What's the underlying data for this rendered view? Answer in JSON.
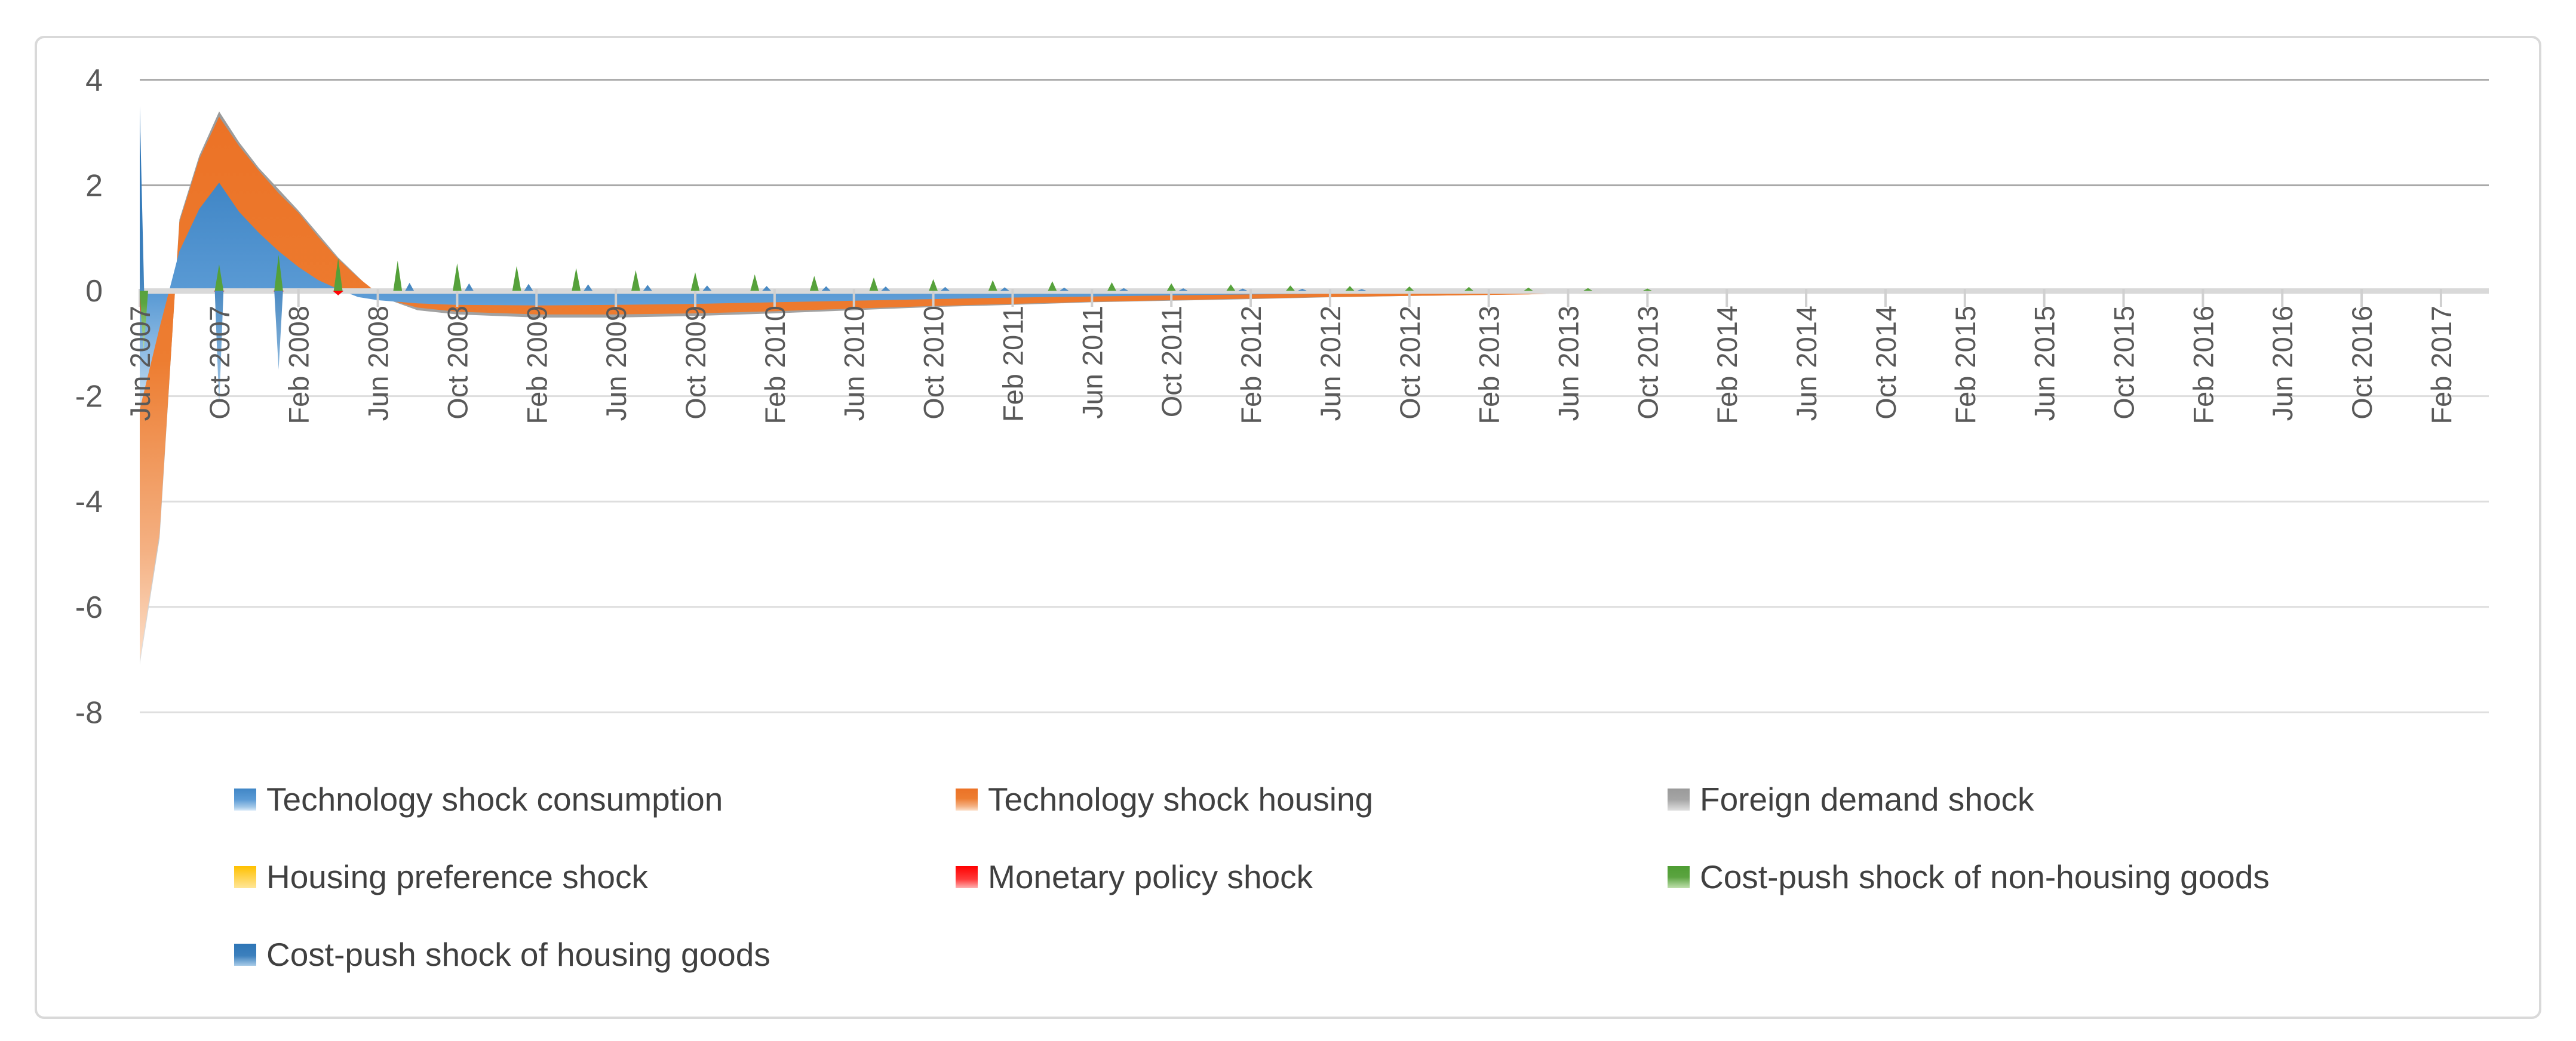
{
  "chart_data": {
    "type": "area",
    "title": "",
    "xlabel": "",
    "ylabel": "",
    "ylim": [
      -8,
      4
    ],
    "yticks": [
      4,
      2,
      0,
      -2,
      -4,
      -6,
      -8
    ],
    "grid": "horizontal",
    "legend_position": "bottom",
    "x_label_rotation": -90,
    "months_per_category": 4,
    "categories": [
      "Jun 2007",
      "Oct 2007",
      "Feb 2008",
      "Jun 2008",
      "Oct 2008",
      "Feb 2009",
      "Jun 2009",
      "Oct 2009",
      "Feb 2010",
      "Jun 2010",
      "Oct 2010",
      "Feb 2011",
      "Jun 2011",
      "Oct 2011",
      "Feb 2012",
      "Jun 2012",
      "Oct 2012",
      "Feb 2013",
      "Jun 2013",
      "Oct 2013",
      "Feb 2014",
      "Jun 2014",
      "Oct 2014",
      "Feb 2015",
      "Jun 2015",
      "Oct 2015",
      "Feb 2016",
      "Jun 2016",
      "Oct 2016",
      "Feb 2017"
    ],
    "x_unit_note": "series x values are months since Jun 2007; values estimated from pixel positions",
    "series": [
      {
        "name": "Technology shock consumption",
        "color": "#5B9BD5",
        "z": 2,
        "gradient": [
          [
            "0%",
            "#4086c6"
          ],
          [
            "50%",
            "#5B9BD5"
          ],
          [
            "85%",
            "#a6cae9"
          ],
          [
            "100%",
            "#d9eafa"
          ]
        ],
        "keyframes": [
          [
            0,
            -2.25
          ],
          [
            1,
            -0.7
          ],
          [
            2,
            0.75
          ],
          [
            3,
            1.55
          ],
          [
            4,
            2.05
          ],
          [
            5,
            1.5
          ],
          [
            6,
            1.1
          ],
          [
            7,
            0.75
          ],
          [
            8,
            0.45
          ],
          [
            9,
            0.2
          ],
          [
            10,
            0.03
          ],
          [
            11,
            -0.12
          ],
          [
            12,
            -0.18
          ],
          [
            14,
            -0.24
          ],
          [
            16,
            -0.27
          ],
          [
            20,
            -0.28
          ],
          [
            24,
            -0.27
          ],
          [
            28,
            -0.25
          ],
          [
            32,
            -0.22
          ],
          [
            36,
            -0.19
          ],
          [
            40,
            -0.16
          ],
          [
            44,
            -0.13
          ],
          [
            48,
            -0.11
          ],
          [
            52,
            -0.09
          ],
          [
            56,
            -0.07
          ],
          [
            60,
            -0.055
          ],
          [
            64,
            -0.04
          ],
          [
            68,
            -0.03
          ],
          [
            72,
            -0.02
          ],
          [
            76,
            -0.01
          ],
          [
            80,
            0
          ],
          [
            118,
            0
          ]
        ]
      },
      {
        "name": "Technology shock  housing",
        "color": "#ED7D31",
        "z": 1,
        "gradient": [
          [
            "0%",
            "#ec7226"
          ],
          [
            "45%",
            "#ED7D31"
          ],
          [
            "80%",
            "#f4b183"
          ],
          [
            "100%",
            "#fcdfc9"
          ]
        ],
        "keyframes": [
          [
            0,
            -7.0
          ],
          [
            1,
            -4.6
          ],
          [
            2,
            1.3
          ],
          [
            3,
            2.5
          ],
          [
            4,
            3.3
          ],
          [
            5,
            2.75
          ],
          [
            6,
            2.28
          ],
          [
            7,
            1.85
          ],
          [
            8,
            1.48
          ],
          [
            9,
            1.02
          ],
          [
            10,
            0.6
          ],
          [
            11,
            0.25
          ],
          [
            12,
            -0.05
          ],
          [
            13,
            -0.22
          ],
          [
            14,
            -0.32
          ],
          [
            16,
            -0.4
          ],
          [
            20,
            -0.45
          ],
          [
            24,
            -0.45
          ],
          [
            28,
            -0.43
          ],
          [
            32,
            -0.39
          ],
          [
            36,
            -0.34
          ],
          [
            40,
            -0.29
          ],
          [
            44,
            -0.25
          ],
          [
            48,
            -0.21
          ],
          [
            52,
            -0.18
          ],
          [
            56,
            -0.15
          ],
          [
            60,
            -0.12
          ],
          [
            64,
            -0.1
          ],
          [
            68,
            -0.08
          ],
          [
            70,
            -0.07
          ],
          [
            72,
            -0.04
          ],
          [
            74,
            -0.02
          ],
          [
            75,
            0
          ],
          [
            118,
            0
          ]
        ]
      },
      {
        "name": "Foreign demand shock",
        "color": "#A5A5A5",
        "z": 0,
        "gradient": [
          [
            "0%",
            "#9a9a9a"
          ],
          [
            "50%",
            "#A5A5A5"
          ],
          [
            "100%",
            "#e0e0e0"
          ]
        ],
        "keyframes": [
          [
            0,
            -7.1
          ],
          [
            1,
            -4.7
          ],
          [
            2,
            1.35
          ],
          [
            3,
            2.56
          ],
          [
            4,
            3.4
          ],
          [
            5,
            2.82
          ],
          [
            6,
            2.33
          ],
          [
            8,
            1.52
          ],
          [
            10,
            0.63
          ],
          [
            12,
            -0.1
          ],
          [
            14,
            -0.37
          ],
          [
            16,
            -0.45
          ],
          [
            20,
            -0.51
          ],
          [
            24,
            -0.51
          ],
          [
            28,
            -0.48
          ],
          [
            32,
            -0.43
          ],
          [
            36,
            -0.37
          ],
          [
            40,
            -0.31
          ],
          [
            44,
            -0.27
          ],
          [
            48,
            -0.22
          ],
          [
            52,
            -0.19
          ],
          [
            56,
            -0.16
          ],
          [
            60,
            -0.125
          ],
          [
            64,
            -0.1
          ],
          [
            68,
            -0.08
          ],
          [
            72,
            -0.05
          ],
          [
            74,
            -0.02
          ],
          [
            75,
            0
          ],
          [
            118,
            0
          ]
        ]
      },
      {
        "name": "Housing preference shock",
        "color": "#FFC000",
        "z": 3,
        "gradient": [
          [
            "0%",
            "#FFC000"
          ],
          [
            "100%",
            "#ffe699"
          ]
        ],
        "keyframes": [
          [
            66,
            0
          ],
          [
            69,
            -0.04
          ],
          [
            73,
            -0.06
          ],
          [
            77,
            -0.04
          ],
          [
            80,
            0
          ],
          [
            118,
            0
          ]
        ]
      },
      {
        "name": "Monetary policy shock",
        "color": "#FF0000",
        "z": 4,
        "gradient": [
          [
            "0%",
            "#FF0000"
          ],
          [
            "60%",
            "#ff3b3b"
          ],
          [
            "100%",
            "#ffb3b3"
          ]
        ],
        "spike_halfwidth": 0.28,
        "spikes": [
          [
            0.12,
            -0.6
          ],
          [
            4,
            -0.09
          ],
          [
            7,
            -0.09
          ],
          [
            10,
            -0.09
          ]
        ]
      },
      {
        "name": "Cost-push shock of non-housing goods",
        "color": "#5BA440",
        "z": 5,
        "gradient": [
          [
            "0%",
            "#4e9d33"
          ],
          [
            "50%",
            "#5BA440"
          ],
          [
            "100%",
            "#c0e0ae"
          ]
        ],
        "spike_halfwidth": 0.22,
        "spikes": [
          [
            0.2,
            -1.15
          ],
          [
            4,
            0.5
          ],
          [
            7,
            0.68
          ],
          [
            10,
            0.62
          ],
          [
            13,
            0.57
          ],
          [
            16,
            0.52
          ],
          [
            19,
            0.47
          ],
          [
            22,
            0.43
          ],
          [
            25,
            0.39
          ],
          [
            28,
            0.35
          ],
          [
            31,
            0.31
          ],
          [
            34,
            0.28
          ],
          [
            37,
            0.25
          ],
          [
            40,
            0.22
          ],
          [
            43,
            0.2
          ],
          [
            46,
            0.18
          ],
          [
            49,
            0.16
          ],
          [
            52,
            0.14
          ],
          [
            55,
            0.12
          ],
          [
            58,
            0.1
          ],
          [
            61,
            0.09
          ],
          [
            64,
            0.08
          ],
          [
            67,
            0.07
          ],
          [
            70,
            0.06
          ],
          [
            73,
            0.05
          ],
          [
            76,
            0.04
          ]
        ]
      },
      {
        "name": "Cost-push shock of housing goods",
        "color": "#2E75B6",
        "z": 6,
        "gradient": [
          [
            "0%",
            "#2E75B6"
          ],
          [
            "55%",
            "#3c80bd"
          ],
          [
            "100%",
            "#a8cbe8"
          ]
        ],
        "spike_halfwidth": 0.22,
        "spikes": [
          [
            0,
            3.5
          ],
          [
            4,
            -2.2
          ],
          [
            7,
            -1.5
          ],
          [
            13.6,
            0.15
          ],
          [
            16.6,
            0.14
          ],
          [
            19.6,
            0.13
          ],
          [
            22.6,
            0.12
          ],
          [
            25.6,
            0.11
          ],
          [
            28.6,
            0.1
          ],
          [
            31.6,
            0.09
          ],
          [
            34.6,
            0.085
          ],
          [
            37.6,
            0.08
          ],
          [
            40.6,
            0.07
          ],
          [
            43.6,
            0.065
          ],
          [
            46.6,
            0.06
          ],
          [
            49.6,
            0.05
          ],
          [
            52.6,
            0.045
          ],
          [
            55.6,
            0.04
          ],
          [
            58.6,
            0.035
          ],
          [
            61.6,
            0.03
          ]
        ]
      }
    ]
  },
  "style": {
    "grid_dark": "#a6a6a6",
    "grid_light": "#dedede",
    "axis_band": "#d9d9d9",
    "tick_color": "#d0d0d0",
    "label_color": "#595959",
    "legend_text_color": "#404040",
    "border_color": "#d9d9d9",
    "background": "#ffffff"
  }
}
